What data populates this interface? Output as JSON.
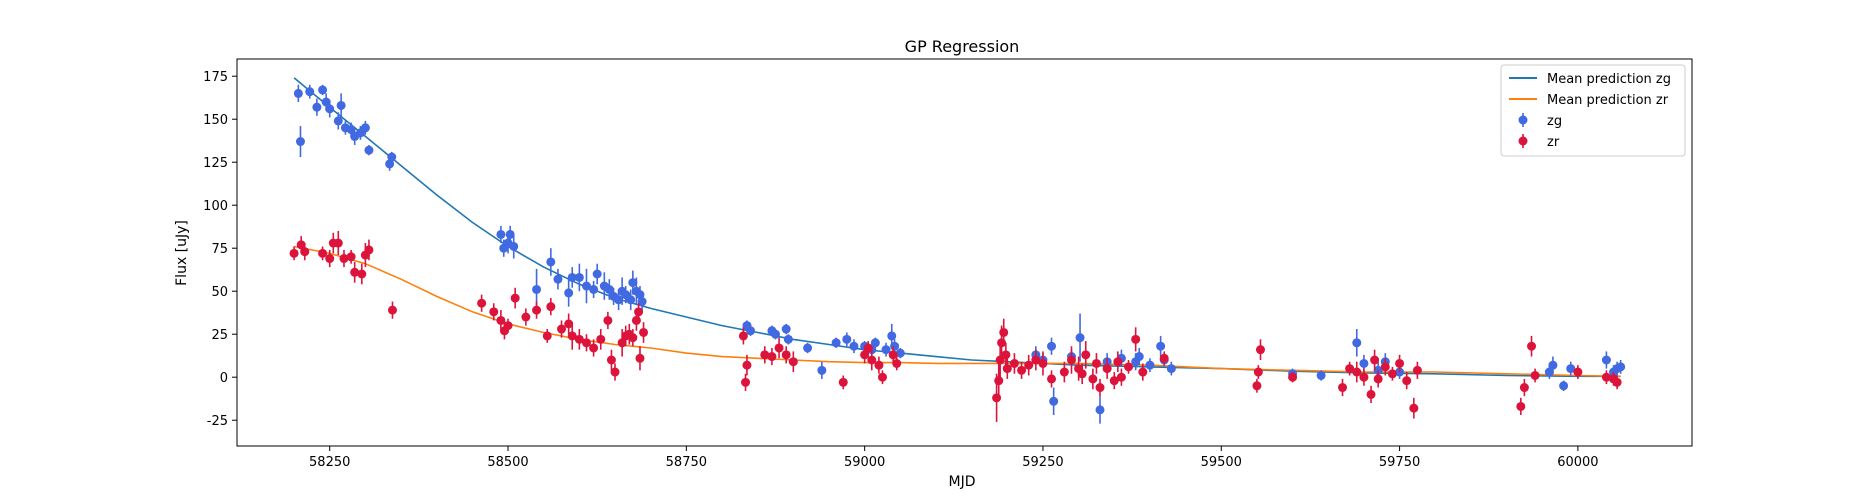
{
  "chart_data": {
    "type": "scatter",
    "title": "GP Regression",
    "xlabel": "MJD",
    "ylabel": "Flux [uJy]",
    "xlim": [
      58120,
      60160
    ],
    "ylim": [
      -40,
      185
    ],
    "xticks": [
      58250,
      58500,
      58750,
      59000,
      59250,
      59500,
      59750,
      60000
    ],
    "yticks": [
      -25,
      0,
      25,
      50,
      75,
      100,
      125,
      150,
      175
    ],
    "legend_position": "top-right",
    "grid": false,
    "lines": [
      {
        "name": "Mean prediction zg",
        "color": "#1f77b4",
        "x": [
          58200,
          58250,
          58300,
          58350,
          58400,
          58450,
          58500,
          58550,
          58600,
          58650,
          58700,
          58750,
          58800,
          58850,
          58900,
          58950,
          59000,
          59050,
          59100,
          59150,
          59200,
          59300,
          59400,
          59500,
          59600,
          59700,
          59800,
          59900,
          60000,
          60060
        ],
        "y": [
          174,
          157,
          140,
          123,
          106,
          90,
          76,
          64,
          54,
          46,
          40,
          35,
          30,
          26,
          22,
          19,
          16,
          14,
          12,
          10,
          9,
          7,
          6,
          5,
          3.5,
          2.5,
          2,
          1,
          0.5,
          0.5
        ]
      },
      {
        "name": "Mean prediction zr",
        "color": "#ff7f0e",
        "x": [
          58200,
          58250,
          58300,
          58350,
          58400,
          58450,
          58500,
          58550,
          58600,
          58650,
          58700,
          58750,
          58800,
          58850,
          58900,
          58950,
          59000,
          59050,
          59100,
          59150,
          59200,
          59300,
          59400,
          59500,
          59600,
          59700,
          59800,
          59900,
          60000,
          60060
        ],
        "y": [
          76,
          72,
          66,
          57,
          47,
          38,
          31,
          26,
          22,
          19,
          17,
          14,
          12,
          11,
          10,
          9,
          8.5,
          8.5,
          8,
          8,
          8,
          8,
          7,
          5,
          4,
          3,
          3,
          2,
          1,
          0.5
        ]
      }
    ],
    "series": [
      {
        "name": "zg",
        "color": "#4169e1",
        "points": [
          [
            58206,
            165,
            5
          ],
          [
            58209,
            137,
            9
          ],
          [
            58222,
            166,
            4
          ],
          [
            58232,
            157,
            5
          ],
          [
            58240,
            167,
            3
          ],
          [
            58245,
            160,
            5
          ],
          [
            58250,
            156,
            5
          ],
          [
            58262,
            149,
            5
          ],
          [
            58266,
            158,
            7
          ],
          [
            58272,
            145,
            4
          ],
          [
            58280,
            144,
            4
          ],
          [
            58285,
            140,
            5
          ],
          [
            58293,
            142,
            4
          ],
          [
            58300,
            145,
            4
          ],
          [
            58305,
            132,
            3
          ],
          [
            58334,
            124,
            4
          ],
          [
            58337,
            128,
            3
          ],
          [
            58490,
            83,
            5
          ],
          [
            58494,
            75,
            5
          ],
          [
            58500,
            78,
            6
          ],
          [
            58503,
            83,
            5
          ],
          [
            58508,
            76,
            7
          ],
          [
            58540,
            51,
            12
          ],
          [
            58560,
            67,
            8
          ],
          [
            58570,
            57,
            6
          ],
          [
            58585,
            49,
            8
          ],
          [
            58590,
            58,
            6
          ],
          [
            58600,
            58,
            8
          ],
          [
            58610,
            53,
            10
          ],
          [
            58620,
            51,
            5
          ],
          [
            58625,
            60,
            6
          ],
          [
            58635,
            53,
            8
          ],
          [
            58642,
            51,
            6
          ],
          [
            58648,
            47,
            5
          ],
          [
            58655,
            45,
            6
          ],
          [
            58660,
            50,
            8
          ],
          [
            58665,
            48,
            5
          ],
          [
            58672,
            45,
            6
          ],
          [
            58675,
            55,
            7
          ],
          [
            58680,
            50,
            8
          ],
          [
            58685,
            48,
            5
          ],
          [
            58688,
            44,
            6
          ],
          [
            58835,
            30,
            3
          ],
          [
            58840,
            27,
            3
          ],
          [
            58870,
            27,
            3
          ],
          [
            58875,
            25,
            3
          ],
          [
            58890,
            28,
            3
          ],
          [
            58893,
            22,
            3
          ],
          [
            58920,
            17,
            3
          ],
          [
            58940,
            4,
            5
          ],
          [
            58960,
            20,
            3
          ],
          [
            58975,
            22,
            4
          ],
          [
            58985,
            18,
            4
          ],
          [
            59000,
            18,
            3
          ],
          [
            59010,
            16,
            3
          ],
          [
            59015,
            20,
            3
          ],
          [
            59030,
            16,
            4
          ],
          [
            59038,
            24,
            7
          ],
          [
            59042,
            18,
            4
          ],
          [
            59050,
            14,
            3
          ],
          [
            59240,
            13,
            5
          ],
          [
            59250,
            10,
            4
          ],
          [
            59262,
            18,
            5
          ],
          [
            59265,
            -14,
            8
          ],
          [
            59290,
            12,
            4
          ],
          [
            59302,
            23,
            14
          ],
          [
            59330,
            -19,
            8
          ],
          [
            59340,
            9,
            5
          ],
          [
            59360,
            11,
            5
          ],
          [
            59380,
            9,
            5
          ],
          [
            59385,
            12,
            5
          ],
          [
            59400,
            7,
            4
          ],
          [
            59415,
            18,
            6
          ],
          [
            59420,
            10,
            4
          ],
          [
            59430,
            5,
            4
          ],
          [
            59600,
            2,
            3
          ],
          [
            59640,
            1,
            3
          ],
          [
            59690,
            20,
            8
          ],
          [
            59700,
            8,
            5
          ],
          [
            59720,
            4,
            5
          ],
          [
            59730,
            9,
            5
          ],
          [
            59750,
            3,
            4
          ],
          [
            59960,
            3,
            4
          ],
          [
            59965,
            7,
            5
          ],
          [
            59980,
            -5,
            3
          ],
          [
            59990,
            5,
            4
          ],
          [
            60040,
            10,
            5
          ],
          [
            60050,
            3,
            4
          ],
          [
            60055,
            5,
            4
          ],
          [
            60060,
            6,
            4
          ]
        ]
      },
      {
        "name": "zr",
        "color": "#dc143c",
        "points": [
          [
            58200,
            72,
            4
          ],
          [
            58210,
            77,
            5
          ],
          [
            58215,
            73,
            5
          ],
          [
            58240,
            72,
            4
          ],
          [
            58250,
            69,
            5
          ],
          [
            58255,
            78,
            6
          ],
          [
            58262,
            78,
            7
          ],
          [
            58270,
            69,
            5
          ],
          [
            58280,
            70,
            4
          ],
          [
            58285,
            61,
            6
          ],
          [
            58295,
            60,
            6
          ],
          [
            58300,
            71,
            7
          ],
          [
            58305,
            74,
            6
          ],
          [
            58338,
            39,
            5
          ],
          [
            58463,
            43,
            5
          ],
          [
            58480,
            38,
            5
          ],
          [
            58490,
            33,
            6
          ],
          [
            58495,
            27,
            5
          ],
          [
            58500,
            30,
            4
          ],
          [
            58510,
            46,
            6
          ],
          [
            58525,
            35,
            5
          ],
          [
            58540,
            39,
            5
          ],
          [
            58555,
            24,
            4
          ],
          [
            58560,
            41,
            5
          ],
          [
            58575,
            28,
            5
          ],
          [
            58585,
            31,
            6
          ],
          [
            58590,
            24,
            8
          ],
          [
            58600,
            22,
            6
          ],
          [
            58610,
            20,
            5
          ],
          [
            58620,
            17,
            5
          ],
          [
            58630,
            22,
            6
          ],
          [
            58640,
            33,
            5
          ],
          [
            58645,
            10,
            6
          ],
          [
            58650,
            3,
            5
          ],
          [
            58660,
            20,
            8
          ],
          [
            58665,
            24,
            6
          ],
          [
            58670,
            25,
            6
          ],
          [
            58675,
            23,
            5
          ],
          [
            58680,
            33,
            6
          ],
          [
            58683,
            38,
            5
          ],
          [
            58685,
            11,
            7
          ],
          [
            58690,
            26,
            6
          ],
          [
            58830,
            24,
            5
          ],
          [
            58833,
            -3,
            5
          ],
          [
            58835,
            7,
            6
          ],
          [
            58860,
            13,
            5
          ],
          [
            58870,
            12,
            5
          ],
          [
            58880,
            17,
            6
          ],
          [
            58890,
            13,
            5
          ],
          [
            58900,
            9,
            6
          ],
          [
            58970,
            -3,
            4
          ],
          [
            59000,
            13,
            5
          ],
          [
            59005,
            17,
            4
          ],
          [
            59010,
            10,
            6
          ],
          [
            59020,
            7,
            5
          ],
          [
            59025,
            0,
            4
          ],
          [
            59040,
            13,
            5
          ],
          [
            59045,
            8,
            4
          ],
          [
            59185,
            -12,
            14
          ],
          [
            59188,
            -2,
            10
          ],
          [
            59190,
            10,
            12
          ],
          [
            59192,
            20,
            10
          ],
          [
            59195,
            26,
            8
          ],
          [
            59198,
            13,
            7
          ],
          [
            59200,
            5,
            6
          ],
          [
            59210,
            8,
            6
          ],
          [
            59220,
            4,
            5
          ],
          [
            59230,
            7,
            6
          ],
          [
            59240,
            10,
            6
          ],
          [
            59250,
            8,
            7
          ],
          [
            59262,
            -1,
            5
          ],
          [
            59280,
            3,
            6
          ],
          [
            59290,
            10,
            8
          ],
          [
            59300,
            5,
            7
          ],
          [
            59305,
            2,
            6
          ],
          [
            59310,
            13,
            8
          ],
          [
            59320,
            -1,
            6
          ],
          [
            59325,
            8,
            6
          ],
          [
            59330,
            -6,
            5
          ],
          [
            59340,
            5,
            6
          ],
          [
            59350,
            -2,
            5
          ],
          [
            59355,
            9,
            6
          ],
          [
            59360,
            0,
            5
          ],
          [
            59370,
            6,
            4
          ],
          [
            59380,
            22,
            7
          ],
          [
            59390,
            3,
            5
          ],
          [
            59420,
            11,
            4
          ],
          [
            59550,
            -5,
            4
          ],
          [
            59552,
            3,
            4
          ],
          [
            59555,
            16,
            6
          ],
          [
            59600,
            0,
            3
          ],
          [
            59670,
            -6,
            5
          ],
          [
            59680,
            5,
            4
          ],
          [
            59690,
            3,
            6
          ],
          [
            59700,
            0,
            5
          ],
          [
            59710,
            -10,
            5
          ],
          [
            59715,
            10,
            6
          ],
          [
            59720,
            -1,
            5
          ],
          [
            59730,
            6,
            5
          ],
          [
            59740,
            2,
            4
          ],
          [
            59750,
            8,
            5
          ],
          [
            59760,
            -2,
            5
          ],
          [
            59770,
            -18,
            6
          ],
          [
            59775,
            4,
            5
          ],
          [
            59920,
            -17,
            5
          ],
          [
            59925,
            -6,
            5
          ],
          [
            59935,
            18,
            6
          ],
          [
            59940,
            1,
            4
          ],
          [
            60000,
            3,
            4
          ],
          [
            60040,
            0,
            4
          ],
          [
            60050,
            -1,
            4
          ],
          [
            60055,
            -3,
            4
          ]
        ]
      }
    ]
  }
}
